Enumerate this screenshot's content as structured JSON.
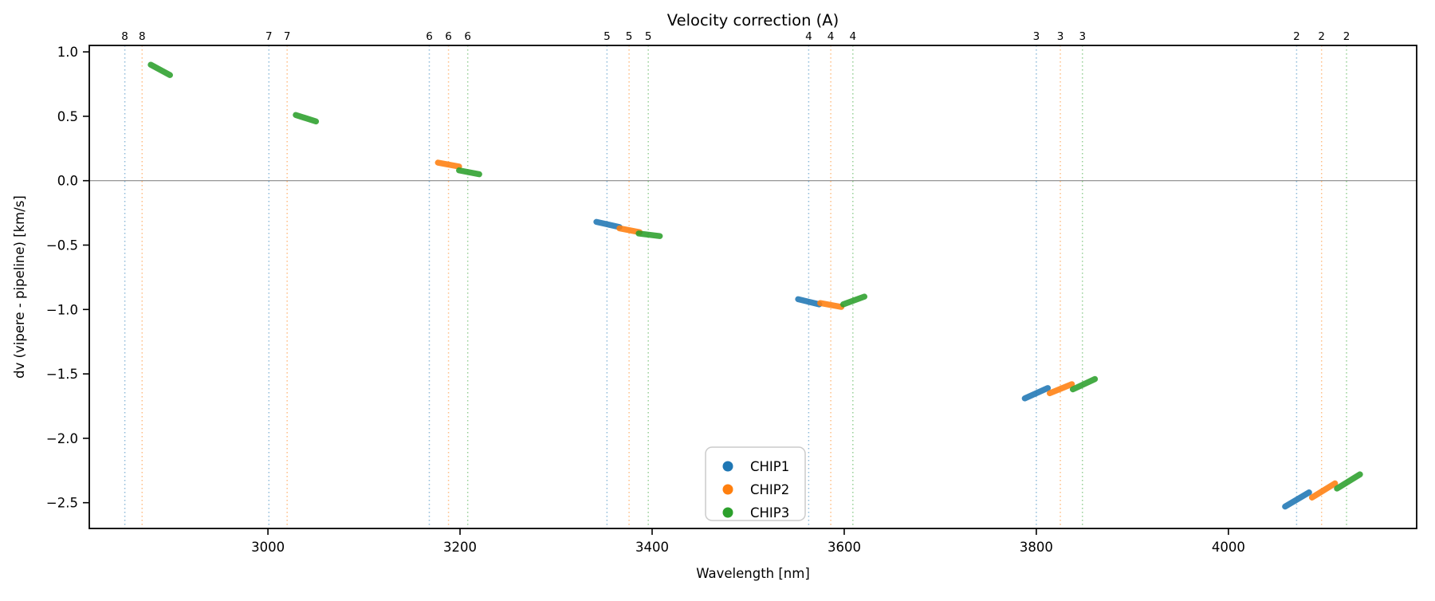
{
  "page": {
    "background": "#ffffff"
  },
  "chart_data": {
    "type": "scatter",
    "title": "Velocity correction (A)",
    "xlabel": "Wavelength [nm]",
    "ylabel": "dv (vipere - pipeline) [km/s]",
    "xlim": [
      2814,
      4196
    ],
    "ylim": [
      -2.7,
      1.05
    ],
    "xticks": [
      3000,
      3200,
      3400,
      3600,
      3800,
      4000
    ],
    "yticks": [
      1.0,
      0.5,
      0.0,
      -0.5,
      -1.0,
      -1.5,
      -2.0,
      -2.5
    ],
    "grid": false,
    "zero_line": {
      "y": 0.0,
      "color": "#888888"
    },
    "colors": {
      "CHIP1": "#1f77b4",
      "CHIP2": "#ff7f0e",
      "CHIP3": "#2ca02c"
    },
    "legend": {
      "position": "lower center",
      "entries": [
        {
          "label": "CHIP1",
          "color": "#1f77b4"
        },
        {
          "label": "CHIP2",
          "color": "#ff7f0e"
        },
        {
          "label": "CHIP3",
          "color": "#2ca02c"
        }
      ]
    },
    "order_markers": [
      {
        "order": "8",
        "chip": "CHIP1",
        "wavelength": 2851
      },
      {
        "order": "8",
        "chip": "CHIP2",
        "wavelength": 2869
      },
      {
        "order": "7",
        "chip": "CHIP1",
        "wavelength": 3001
      },
      {
        "order": "7",
        "chip": "CHIP2",
        "wavelength": 3020
      },
      {
        "order": "6",
        "chip": "CHIP1",
        "wavelength": 3168
      },
      {
        "order": "6",
        "chip": "CHIP2",
        "wavelength": 3188
      },
      {
        "order": "6",
        "chip": "CHIP3",
        "wavelength": 3208
      },
      {
        "order": "5",
        "chip": "CHIP1",
        "wavelength": 3353
      },
      {
        "order": "5",
        "chip": "CHIP2",
        "wavelength": 3376
      },
      {
        "order": "5",
        "chip": "CHIP3",
        "wavelength": 3396
      },
      {
        "order": "4",
        "chip": "CHIP1",
        "wavelength": 3563
      },
      {
        "order": "4",
        "chip": "CHIP2",
        "wavelength": 3586
      },
      {
        "order": "4",
        "chip": "CHIP3",
        "wavelength": 3609
      },
      {
        "order": "3",
        "chip": "CHIP1",
        "wavelength": 3800
      },
      {
        "order": "3",
        "chip": "CHIP2",
        "wavelength": 3825
      },
      {
        "order": "3",
        "chip": "CHIP3",
        "wavelength": 3848
      },
      {
        "order": "2",
        "chip": "CHIP1",
        "wavelength": 4071
      },
      {
        "order": "2",
        "chip": "CHIP2",
        "wavelength": 4097
      },
      {
        "order": "2",
        "chip": "CHIP3",
        "wavelength": 4123
      }
    ],
    "series": [
      {
        "name": "CHIP1",
        "segments": [
          {
            "order": "5",
            "x": [
              3342,
              3366
            ],
            "y": [
              -0.32,
              -0.36
            ]
          },
          {
            "order": "4",
            "x": [
              3552,
              3574
            ],
            "y": [
              -0.92,
              -0.96
            ]
          },
          {
            "order": "3",
            "x": [
              3788,
              3812
            ],
            "y": [
              -1.69,
              -1.61
            ]
          },
          {
            "order": "2",
            "x": [
              4059,
              4084
            ],
            "y": [
              -2.53,
              -2.42
            ]
          }
        ]
      },
      {
        "name": "CHIP2",
        "segments": [
          {
            "order": "6",
            "x": [
              3177,
              3199
            ],
            "y": [
              0.14,
              0.11
            ]
          },
          {
            "order": "5",
            "x": [
              3366,
              3387
            ],
            "y": [
              -0.37,
              -0.4
            ]
          },
          {
            "order": "4",
            "x": [
              3575,
              3597
            ],
            "y": [
              -0.95,
              -0.98
            ]
          },
          {
            "order": "3",
            "x": [
              3814,
              3837
            ],
            "y": [
              -1.65,
              -1.58
            ]
          },
          {
            "order": "2",
            "x": [
              4087,
              4111
            ],
            "y": [
              -2.46,
              -2.35
            ]
          }
        ]
      },
      {
        "name": "CHIP3",
        "segments": [
          {
            "order": "8",
            "x": [
              2878,
              2898
            ],
            "y": [
              0.9,
              0.82
            ]
          },
          {
            "order": "7",
            "x": [
              3029,
              3050
            ],
            "y": [
              0.51,
              0.46
            ]
          },
          {
            "order": "6",
            "x": [
              3199,
              3220
            ],
            "y": [
              0.08,
              0.05
            ]
          },
          {
            "order": "5",
            "x": [
              3386,
              3408
            ],
            "y": [
              -0.41,
              -0.43
            ]
          },
          {
            "order": "4",
            "x": [
              3599,
              3621
            ],
            "y": [
              -0.96,
              -0.9
            ]
          },
          {
            "order": "3",
            "x": [
              3838,
              3861
            ],
            "y": [
              -1.62,
              -1.54
            ]
          },
          {
            "order": "2",
            "x": [
              4113,
              4137
            ],
            "y": [
              -2.39,
              -2.28
            ]
          }
        ]
      }
    ]
  }
}
